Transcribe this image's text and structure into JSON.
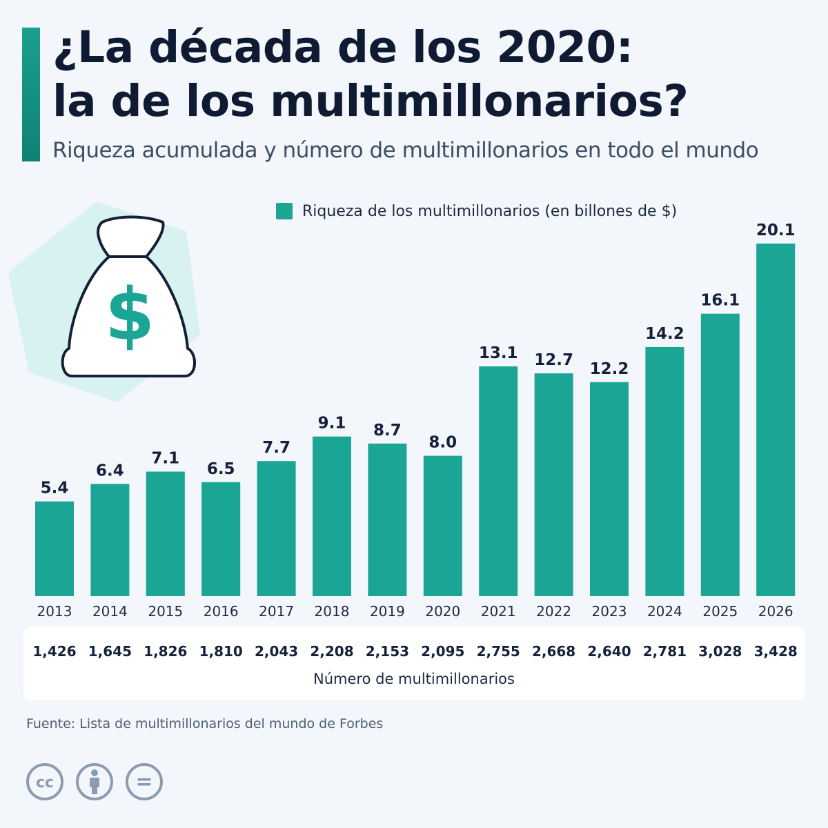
{
  "header": {
    "title_line1": "¿La década de los 2020:",
    "title_line2": "la de los multimillonarios?",
    "subtitle": "Riqueza acumulada y número de multimillonarios en todo el mundo"
  },
  "legend": {
    "label": "Riqueza de los multimillonarios (en billones de $)"
  },
  "colors": {
    "bar": "#1aa595",
    "accent": "#149583",
    "decor_hexagon": "#d2f1ee",
    "text_dark": "#15213a"
  },
  "illustration": {
    "icon": "money-bag-icon",
    "symbol": "$"
  },
  "chart_data": {
    "type": "bar",
    "categories": [
      "2013",
      "2014",
      "2015",
      "2016",
      "2017",
      "2018",
      "2019",
      "2020",
      "2021",
      "2022",
      "2023",
      "2024",
      "2025",
      "2026"
    ],
    "values": [
      5.4,
      6.4,
      7.1,
      6.5,
      7.7,
      9.1,
      8.7,
      8.0,
      13.1,
      12.7,
      12.2,
      14.2,
      16.1,
      20.1
    ],
    "value_labels": [
      "5.4",
      "6.4",
      "7.1",
      "6.5",
      "7.7",
      "9.1",
      "8.7",
      "8.0",
      "13.1",
      "12.7",
      "12.2",
      "14.2",
      "16.1",
      "20.1"
    ],
    "series": [
      {
        "name": "Riqueza de los multimillonarios (en billones de $)",
        "values": [
          5.4,
          6.4,
          7.1,
          6.5,
          7.7,
          9.1,
          8.7,
          8.0,
          13.1,
          12.7,
          12.2,
          14.2,
          16.1,
          20.1
        ]
      }
    ],
    "ylim": [
      0,
      20.1
    ],
    "grid": false,
    "legend_position": "top"
  },
  "billionaire_counts": {
    "label": "Número de multimillonarios",
    "values": [
      "1,426",
      "1,645",
      "1,826",
      "1,810",
      "2,043",
      "2,208",
      "2,153",
      "2,095",
      "2,755",
      "2,668",
      "2,640",
      "2,781",
      "3,028",
      "3,428"
    ]
  },
  "footer": {
    "source": "Fuente: Lista de multimillonarios del mundo de Forbes",
    "license_icons": [
      "cc-icon",
      "attribution-icon",
      "no-derivatives-icon"
    ],
    "cc_text": "cc",
    "nd_text": "="
  }
}
